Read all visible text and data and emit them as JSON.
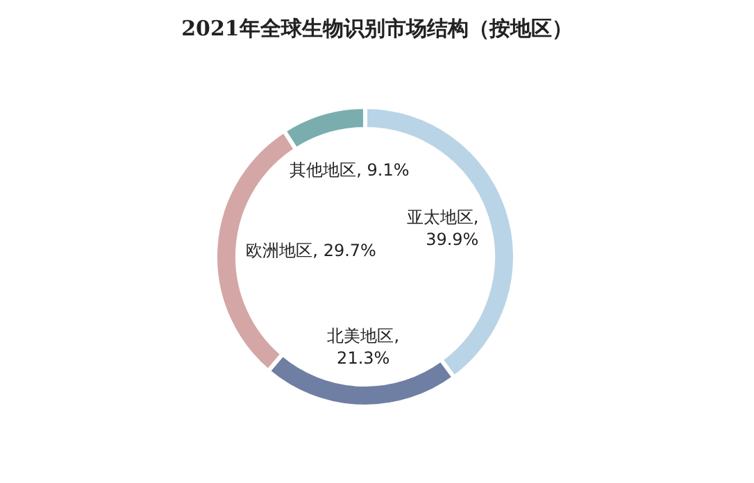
{
  "chart_data": {
    "type": "donut",
    "title": "2021年全球生物识别市场结构（按地区）",
    "categories": [
      "亚太地区",
      "北美地区",
      "欧洲地区",
      "其他地区"
    ],
    "values": [
      39.9,
      21.3,
      29.7,
      9.1
    ],
    "colors": [
      "#b9d4e6",
      "#6f7fa3",
      "#d4a7a6",
      "#7aaeae"
    ],
    "value_labels": [
      ",\n39.9%",
      ",\n21.3%",
      ", 29.7%",
      ", 9.1%"
    ],
    "legend": false
  }
}
